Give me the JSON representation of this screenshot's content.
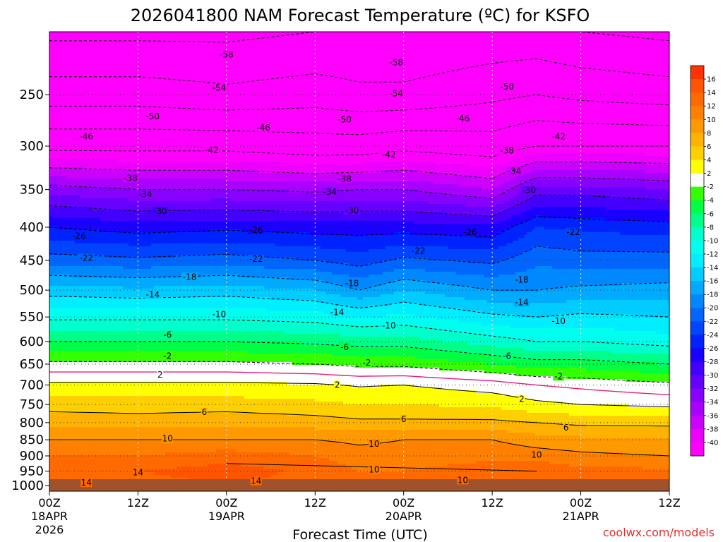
{
  "chart_data": {
    "type": "heatmap",
    "title": "2026041800 NAM Forecast Temperature (ºC) for KSFO",
    "xlabel": "Forecast Time (UTC)",
    "ylabel": "",
    "watermark": "coolwx.com/models",
    "y_ticks": [
      250,
      300,
      350,
      400,
      450,
      500,
      550,
      600,
      650,
      700,
      750,
      800,
      850,
      900,
      950,
      1000
    ],
    "y_lim": [
      1020,
      200
    ],
    "x_ticks": [
      {
        "hour": 0,
        "label": "00Z",
        "label2": "18APR",
        "label3": "2026"
      },
      {
        "hour": 12,
        "label": "12Z",
        "label2": "",
        "label3": ""
      },
      {
        "hour": 24,
        "label": "00Z",
        "label2": "19APR",
        "label3": ""
      },
      {
        "hour": 36,
        "label": "12Z",
        "label2": "",
        "label3": ""
      },
      {
        "hour": 48,
        "label": "00Z",
        "label2": "20APR",
        "label3": ""
      },
      {
        "hour": 60,
        "label": "12Z",
        "label2": "",
        "label3": ""
      },
      {
        "hour": 72,
        "label": "00Z",
        "label2": "21APR",
        "label3": ""
      },
      {
        "hour": 84,
        "label": "12Z",
        "label2": "",
        "label3": ""
      }
    ],
    "x_lim": [
      0,
      84
    ],
    "colorbar": {
      "labels": [
        16,
        14,
        12,
        10,
        8,
        6,
        4,
        2,
        -2,
        -4,
        -6,
        -8,
        -10,
        -12,
        -14,
        -16,
        -18,
        -20,
        -22,
        -24,
        -26,
        -28,
        -30,
        -32,
        -34,
        -36,
        -38,
        -40
      ],
      "bands": [
        {
          "from": 16,
          "to": 18,
          "color": "#ff3300"
        },
        {
          "from": 14,
          "to": 16,
          "color": "#ff5500"
        },
        {
          "from": 12,
          "to": 14,
          "color": "#ff6a00"
        },
        {
          "from": 10,
          "to": 12,
          "color": "#ff8000"
        },
        {
          "from": 8,
          "to": 10,
          "color": "#ff9900"
        },
        {
          "from": 6,
          "to": 8,
          "color": "#ffb300"
        },
        {
          "from": 4,
          "to": 6,
          "color": "#ffd000"
        },
        {
          "from": 2,
          "to": 4,
          "color": "#ffff00"
        },
        {
          "from": -2,
          "to": 2,
          "color": "#ffffff"
        },
        {
          "from": -4,
          "to": -2,
          "color": "#33ff00"
        },
        {
          "from": -6,
          "to": -4,
          "color": "#00ff44"
        },
        {
          "from": -8,
          "to": -6,
          "color": "#00ff88"
        },
        {
          "from": -10,
          "to": -8,
          "color": "#00ffcc"
        },
        {
          "from": -12,
          "to": -10,
          "color": "#00ffee"
        },
        {
          "from": -14,
          "to": -12,
          "color": "#00eeff"
        },
        {
          "from": -16,
          "to": -14,
          "color": "#00ccff"
        },
        {
          "from": -18,
          "to": -16,
          "color": "#00aaff"
        },
        {
          "from": -20,
          "to": -18,
          "color": "#0088ff"
        },
        {
          "from": -22,
          "to": -20,
          "color": "#0066ff"
        },
        {
          "from": -24,
          "to": -22,
          "color": "#0044ff"
        },
        {
          "from": -26,
          "to": -24,
          "color": "#0022ff"
        },
        {
          "from": -28,
          "to": -26,
          "color": "#1a00ff"
        },
        {
          "from": -30,
          "to": -28,
          "color": "#4400ff"
        },
        {
          "from": -32,
          "to": -30,
          "color": "#6600ff"
        },
        {
          "from": -34,
          "to": -32,
          "color": "#8800ff"
        },
        {
          "from": -36,
          "to": -34,
          "color": "#aa00ff"
        },
        {
          "from": -38,
          "to": -36,
          "color": "#cc00ff"
        },
        {
          "from": -40,
          "to": -38,
          "color": "#ee00ff"
        },
        {
          "from": -60,
          "to": -40,
          "color": "#ff00ff"
        }
      ]
    },
    "profiles": [
      {
        "hour": 0,
        "t": [
          [
            1000,
            13
          ],
          [
            950,
            14
          ],
          [
            900,
            12
          ],
          [
            850,
            10
          ],
          [
            800,
            7.5
          ],
          [
            750,
            5
          ],
          [
            700,
            2.5
          ],
          [
            650,
            -1.5
          ],
          [
            600,
            -6
          ],
          [
            550,
            -10.5
          ],
          [
            500,
            -15
          ],
          [
            450,
            -21
          ],
          [
            400,
            -26
          ],
          [
            350,
            -33
          ],
          [
            300,
            -43
          ],
          [
            250,
            -52
          ],
          [
            200,
            -59
          ]
        ]
      },
      {
        "hour": 12,
        "t": [
          [
            1000,
            13
          ],
          [
            950,
            14
          ],
          [
            900,
            12
          ],
          [
            850,
            10
          ],
          [
            800,
            7
          ],
          [
            750,
            5
          ],
          [
            700,
            2.5
          ],
          [
            650,
            -1.5
          ],
          [
            600,
            -6
          ],
          [
            550,
            -10.5
          ],
          [
            500,
            -15.5
          ],
          [
            450,
            -21.5
          ],
          [
            400,
            -27
          ],
          [
            350,
            -34
          ],
          [
            300,
            -43
          ],
          [
            250,
            -52
          ],
          [
            200,
            -59
          ]
        ]
      },
      {
        "hour": 24,
        "t": [
          [
            1000,
            14
          ],
          [
            950,
            15
          ],
          [
            900,
            13
          ],
          [
            850,
            10
          ],
          [
            800,
            7.5
          ],
          [
            750,
            5
          ],
          [
            700,
            2.5
          ],
          [
            650,
            -1.5
          ],
          [
            600,
            -6
          ],
          [
            550,
            -10.5
          ],
          [
            500,
            -15
          ],
          [
            450,
            -21
          ],
          [
            400,
            -26.5
          ],
          [
            350,
            -34
          ],
          [
            300,
            -43
          ],
          [
            250,
            -53
          ],
          [
            200,
            -59
          ]
        ]
      },
      {
        "hour": 36,
        "t": [
          [
            1000,
            13
          ],
          [
            950,
            13.5
          ],
          [
            900,
            12
          ],
          [
            850,
            10
          ],
          [
            800,
            7
          ],
          [
            750,
            4.5
          ],
          [
            700,
            2.3
          ],
          [
            650,
            -2
          ],
          [
            600,
            -6.5
          ],
          [
            550,
            -11
          ],
          [
            500,
            -16
          ],
          [
            450,
            -22
          ],
          [
            400,
            -27
          ],
          [
            350,
            -34.5
          ],
          [
            300,
            -44
          ],
          [
            250,
            -52
          ],
          [
            200,
            -58
          ]
        ]
      },
      {
        "hour": 42,
        "t": [
          [
            1000,
            12
          ],
          [
            950,
            12
          ],
          [
            900,
            11
          ],
          [
            850,
            9.5
          ],
          [
            800,
            6.5
          ],
          [
            750,
            4
          ],
          [
            700,
            1.8
          ],
          [
            650,
            -2.5
          ],
          [
            600,
            -7
          ],
          [
            550,
            -12
          ],
          [
            500,
            -18
          ],
          [
            450,
            -23
          ],
          [
            400,
            -27
          ],
          [
            350,
            -34
          ],
          [
            300,
            -44
          ],
          [
            250,
            -53
          ],
          [
            200,
            -58
          ]
        ]
      },
      {
        "hour": 48,
        "t": [
          [
            1000,
            12
          ],
          [
            950,
            12
          ],
          [
            900,
            11
          ],
          [
            850,
            10
          ],
          [
            800,
            6.5
          ],
          [
            750,
            4
          ],
          [
            700,
            2
          ],
          [
            650,
            -2.5
          ],
          [
            600,
            -7
          ],
          [
            550,
            -11.5
          ],
          [
            500,
            -16
          ],
          [
            450,
            -21.5
          ],
          [
            400,
            -27
          ],
          [
            350,
            -34
          ],
          [
            300,
            -43
          ],
          [
            250,
            -53
          ],
          [
            200,
            -58
          ]
        ]
      },
      {
        "hour": 60,
        "t": [
          [
            1000,
            13
          ],
          [
            950,
            13
          ],
          [
            900,
            11.5
          ],
          [
            850,
            10
          ],
          [
            800,
            6.5
          ],
          [
            750,
            3.5
          ],
          [
            700,
            1
          ],
          [
            650,
            -4
          ],
          [
            600,
            -9
          ],
          [
            550,
            -13.5
          ],
          [
            500,
            -18
          ],
          [
            450,
            -22.5
          ],
          [
            400,
            -27.5
          ],
          [
            350,
            -36
          ],
          [
            300,
            -44
          ],
          [
            250,
            -51
          ],
          [
            200,
            -57
          ]
        ]
      },
      {
        "hour": 66,
        "t": [
          [
            1000,
            14
          ],
          [
            950,
            14
          ],
          [
            900,
            11
          ],
          [
            850,
            9
          ],
          [
            800,
            6
          ],
          [
            750,
            2.5
          ],
          [
            700,
            0
          ],
          [
            650,
            -5
          ],
          [
            600,
            -10
          ],
          [
            550,
            -14
          ],
          [
            500,
            -18
          ],
          [
            450,
            -20.5
          ],
          [
            400,
            -24
          ],
          [
            350,
            -31
          ],
          [
            300,
            -42
          ],
          [
            250,
            -50
          ],
          [
            200,
            -57
          ]
        ]
      },
      {
        "hour": 72,
        "t": [
          [
            1000,
            12
          ],
          [
            950,
            12.5
          ],
          [
            900,
            10.5
          ],
          [
            850,
            8.5
          ],
          [
            800,
            5.5
          ],
          [
            750,
            2
          ],
          [
            700,
            -0.5
          ],
          [
            650,
            -5
          ],
          [
            600,
            -10
          ],
          [
            550,
            -13.5
          ],
          [
            500,
            -17.5
          ],
          [
            450,
            -21
          ],
          [
            400,
            -24.5
          ],
          [
            350,
            -31
          ],
          [
            300,
            -42
          ],
          [
            250,
            -51
          ],
          [
            200,
            -58
          ]
        ]
      },
      {
        "hour": 84,
        "t": [
          [
            1000,
            12
          ],
          [
            950,
            12.5
          ],
          [
            900,
            10
          ],
          [
            850,
            8
          ],
          [
            800,
            5.5
          ],
          [
            750,
            1.5
          ],
          [
            700,
            -1.5
          ],
          [
            650,
            -6
          ],
          [
            600,
            -11
          ],
          [
            550,
            -14
          ],
          [
            500,
            -17
          ],
          [
            450,
            -21
          ],
          [
            400,
            -25
          ],
          [
            350,
            -32
          ],
          [
            300,
            -42
          ],
          [
            250,
            -52
          ],
          [
            200,
            -59
          ]
        ]
      }
    ],
    "contour_labels": [
      {
        "t": "-58",
        "hour": 47,
        "p": 223
      },
      {
        "t": "-58",
        "hour": 24,
        "p": 217
      },
      {
        "t": "-54",
        "hour": 23,
        "p": 244
      },
      {
        "t": "-54",
        "hour": 47,
        "p": 249
      },
      {
        "t": "-50",
        "hour": 14,
        "p": 270
      },
      {
        "t": "-50",
        "hour": 40,
        "p": 273
      },
      {
        "t": "-50",
        "hour": 62,
        "p": 243
      },
      {
        "t": "-46",
        "hour": 5,
        "p": 290
      },
      {
        "t": "-46",
        "hour": 29,
        "p": 281
      },
      {
        "t": "-46",
        "hour": 56,
        "p": 272
      },
      {
        "t": "-42",
        "hour": 22,
        "p": 304
      },
      {
        "t": "-42",
        "hour": 46,
        "p": 309
      },
      {
        "t": "-42",
        "hour": 69,
        "p": 290
      },
      {
        "t": "-38",
        "hour": 11,
        "p": 336
      },
      {
        "t": "-38",
        "hour": 40,
        "p": 337
      },
      {
        "t": "-38",
        "hour": 62,
        "p": 305
      },
      {
        "t": "-34",
        "hour": 13,
        "p": 356
      },
      {
        "t": "-34",
        "hour": 38,
        "p": 353
      },
      {
        "t": "-34",
        "hour": 63,
        "p": 328
      },
      {
        "t": "-30",
        "hour": 15,
        "p": 378
      },
      {
        "t": "-30",
        "hour": 41,
        "p": 377
      },
      {
        "t": "-30",
        "hour": 65,
        "p": 351
      },
      {
        "t": "-26",
        "hour": 4,
        "p": 413
      },
      {
        "t": "-26",
        "hour": 28,
        "p": 404
      },
      {
        "t": "-26",
        "hour": 57,
        "p": 407
      },
      {
        "t": "-22",
        "hour": 5,
        "p": 446
      },
      {
        "t": "-22",
        "hour": 28,
        "p": 448
      },
      {
        "t": "-22",
        "hour": 50,
        "p": 435
      },
      {
        "t": "-22",
        "hour": 71,
        "p": 407
      },
      {
        "t": "-18",
        "hour": 19,
        "p": 477
      },
      {
        "t": "-18",
        "hour": 41,
        "p": 488
      },
      {
        "t": "-18",
        "hour": 64,
        "p": 482
      },
      {
        "t": "-14",
        "hour": 14,
        "p": 508
      },
      {
        "t": "-14",
        "hour": 39,
        "p": 541
      },
      {
        "t": "-14",
        "hour": 64,
        "p": 522
      },
      {
        "t": "-10",
        "hour": 23,
        "p": 545
      },
      {
        "t": "-10",
        "hour": 46,
        "p": 567
      },
      {
        "t": "-10",
        "hour": 69,
        "p": 558
      },
      {
        "t": "-6",
        "hour": 16,
        "p": 586
      },
      {
        "t": "-6",
        "hour": 40,
        "p": 612
      },
      {
        "t": "-6",
        "hour": 62,
        "p": 632
      },
      {
        "t": "-2",
        "hour": 16,
        "p": 632
      },
      {
        "t": "-2",
        "hour": 43,
        "p": 647
      },
      {
        "t": "-2",
        "hour": 69,
        "p": 679
      },
      {
        "t": "2",
        "hour": 15,
        "p": 675
      },
      {
        "t": "2",
        "hour": 39,
        "p": 700
      },
      {
        "t": "2",
        "hour": 64,
        "p": 736
      },
      {
        "t": "6",
        "hour": 21,
        "p": 771
      },
      {
        "t": "6",
        "hour": 48,
        "p": 790
      },
      {
        "t": "6",
        "hour": 70,
        "p": 814
      },
      {
        "t": "10",
        "hour": 16,
        "p": 847
      },
      {
        "t": "10",
        "hour": 44,
        "p": 863
      },
      {
        "t": "10",
        "hour": 66,
        "p": 897
      },
      {
        "t": "10",
        "hour": 44,
        "p": 945
      },
      {
        "t": "10",
        "hour": 56,
        "p": 981
      },
      {
        "t": "14",
        "hour": 12,
        "p": 955
      },
      {
        "t": "14",
        "hour": 28,
        "p": 984
      },
      {
        "t": "14",
        "hour": 5,
        "p": 990
      }
    ]
  }
}
